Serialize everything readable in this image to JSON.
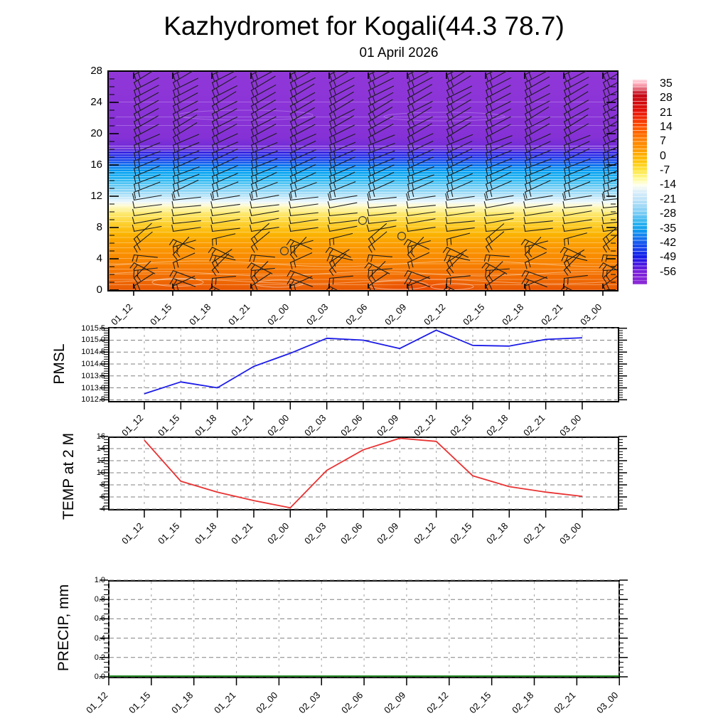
{
  "header": {
    "title": "Kazhydromet for Kogali(44.3 78.7)",
    "subtitle": "01 April 2026"
  },
  "time_labels": [
    "01_12",
    "01_15",
    "01_18",
    "01_21",
    "02_00",
    "02_03",
    "02_06",
    "02_09",
    "02_12",
    "02_15",
    "02_18",
    "02_21",
    "03_00"
  ],
  "chart_data": [
    {
      "type": "heatmap",
      "name": "temperature-height-cross-section",
      "title": "",
      "xlabel": "",
      "ylabel": "",
      "x": [
        "01_12",
        "01_15",
        "01_18",
        "01_21",
        "02_00",
        "02_03",
        "02_06",
        "02_09",
        "02_12",
        "02_15",
        "02_18",
        "02_21",
        "03_00"
      ],
      "ylim": [
        0,
        28
      ],
      "yticks": [
        "0",
        "4",
        "8",
        "12",
        "16",
        "20",
        "24",
        "28"
      ],
      "grid": false,
      "legend_position": "right-colorbar",
      "colorbar_ticks": [
        "35",
        "28",
        "21",
        "14",
        "7",
        "0",
        "-7",
        "-14",
        "-21",
        "-28",
        "-35",
        "-42",
        "-49",
        "-56"
      ],
      "fill_description": "vertical temperature field: orange/red near surface (levels 0-10), yellow ~10, white band ~11, cyan 12-16, dark blue 16-18, purple 18-28, thin white contour lines, wind barbs at every level and time",
      "fill_stops": [
        [
          0.0,
          "#9137d8"
        ],
        [
          0.3,
          "#8531d6"
        ],
        [
          0.35,
          "#6f2bd8"
        ],
        [
          0.37,
          "#3526e2"
        ],
        [
          0.39,
          "#2030e8"
        ],
        [
          0.41,
          "#164eec"
        ],
        [
          0.43,
          "#0c78ef"
        ],
        [
          0.46,
          "#02a2f1"
        ],
        [
          0.5,
          "#38bcf2"
        ],
        [
          0.54,
          "#84d3f5"
        ],
        [
          0.57,
          "#b8e5f9"
        ],
        [
          0.595,
          "#e9f6fd"
        ],
        [
          0.61,
          "#fdfbda"
        ],
        [
          0.63,
          "#fdf3a2"
        ],
        [
          0.65,
          "#fde96e"
        ],
        [
          0.68,
          "#fdd945"
        ],
        [
          0.71,
          "#fcc71d"
        ],
        [
          0.75,
          "#fbb100"
        ],
        [
          0.79,
          "#fb9d00"
        ],
        [
          0.85,
          "#f98b00"
        ],
        [
          0.92,
          "#f47300"
        ],
        [
          1.0,
          "#ea5c06"
        ]
      ],
      "colorbar_stops": [
        [
          0.0,
          "#ffd9e0"
        ],
        [
          0.02,
          "#ffb0c0"
        ],
        [
          0.04,
          "#e87888"
        ],
        [
          0.07,
          "#c40818"
        ],
        [
          0.12,
          "#d50f10"
        ],
        [
          0.16,
          "#e91408"
        ],
        [
          0.2,
          "#f63702"
        ],
        [
          0.23,
          "#ff5500"
        ],
        [
          0.27,
          "#ff6f00"
        ],
        [
          0.3,
          "#ff8400"
        ],
        [
          0.34,
          "#ff9900"
        ],
        [
          0.37,
          "#ffb200"
        ],
        [
          0.41,
          "#ffcc10"
        ],
        [
          0.44,
          "#ffe440"
        ],
        [
          0.48,
          "#fff98e"
        ],
        [
          0.515,
          "#ffffee"
        ],
        [
          0.55,
          "#d9edfa"
        ],
        [
          0.585,
          "#bfe3f8"
        ],
        [
          0.62,
          "#9ed8f6"
        ],
        [
          0.66,
          "#6ec8f3"
        ],
        [
          0.7,
          "#2db4f0"
        ],
        [
          0.73,
          "#0fa0f0"
        ],
        [
          0.77,
          "#1478ef"
        ],
        [
          0.8,
          "#1656ee"
        ],
        [
          0.84,
          "#1735ec"
        ],
        [
          0.87,
          "#1617e8"
        ],
        [
          0.9,
          "#4414e2"
        ],
        [
          0.94,
          "#7c20da"
        ],
        [
          1.0,
          "#8c2ad6"
        ]
      ],
      "wind_barbs": {
        "columns": 13,
        "level_min": 0.5,
        "level_max": 27.5,
        "level_step": 1,
        "calm_circles": [
          {
            "col": 4,
            "level": 5.0
          },
          {
            "col": 6,
            "level": 8.9
          },
          {
            "col": 7,
            "level": 6.9
          }
        ]
      }
    },
    {
      "type": "line",
      "name": "pmsl",
      "title": "",
      "xlabel": "",
      "ylabel": "PMSL",
      "color": "#1c1ce8",
      "x": [
        "01_12",
        "01_15",
        "01_18",
        "01_21",
        "02_00",
        "02_03",
        "02_06",
        "02_09",
        "02_12",
        "02_15",
        "02_18",
        "02_21",
        "03_00"
      ],
      "values": [
        1012.75,
        1013.25,
        1013.0,
        1013.9,
        1014.45,
        1015.08,
        1015.0,
        1014.65,
        1015.42,
        1014.78,
        1014.75,
        1015.03,
        1015.1
      ],
      "ylim": [
        1012.5,
        1015.5
      ],
      "yticks": [
        "1012.5",
        "1013.0",
        "1013.5",
        "1014.0",
        "1014.5",
        "1015.0",
        "1015.5"
      ],
      "grid": true
    },
    {
      "type": "line",
      "name": "temp-2m",
      "title": "",
      "xlabel": "",
      "ylabel": "TEMP at 2 M",
      "color": "#e93232",
      "x": [
        "01_12",
        "01_15",
        "01_18",
        "01_21",
        "02_00",
        "02_03",
        "02_06",
        "02_09",
        "02_12",
        "02_15",
        "02_18",
        "02_21",
        "03_00"
      ],
      "values": [
        15.4,
        8.6,
        6.8,
        5.4,
        4.2,
        10.4,
        13.8,
        15.7,
        15.2,
        9.5,
        7.7,
        6.8,
        6.1
      ],
      "ylim": [
        4,
        16
      ],
      "yticks": [
        "4",
        "6",
        "8",
        "10",
        "12",
        "14",
        "16"
      ],
      "grid": true
    },
    {
      "type": "line",
      "name": "precip",
      "title": "",
      "xlabel": "",
      "ylabel": "PRECIP, mm",
      "color": "#067a06",
      "x": [
        "01_12",
        "01_15",
        "01_18",
        "01_21",
        "02_00",
        "02_03",
        "02_06",
        "02_09",
        "02_12",
        "02_15",
        "02_18",
        "02_21",
        "03_00"
      ],
      "values": [
        0,
        0,
        0,
        0,
        0,
        0,
        0,
        0,
        0,
        0,
        0,
        0,
        0
      ],
      "ylim": [
        0.0,
        1.0
      ],
      "yticks": [
        "0.0",
        "0.2",
        "0.4",
        "0.6",
        "0.8",
        "1.0"
      ],
      "grid": true
    }
  ],
  "colors": {
    "frame": "#000000",
    "grid_horizontal": "#808080",
    "grid_vertical": "#a8a8a8",
    "pmsl_line": "#1c1ce8",
    "temp_line": "#e93232",
    "precip_line": "#067a06",
    "barb": "#1c1c1c"
  }
}
